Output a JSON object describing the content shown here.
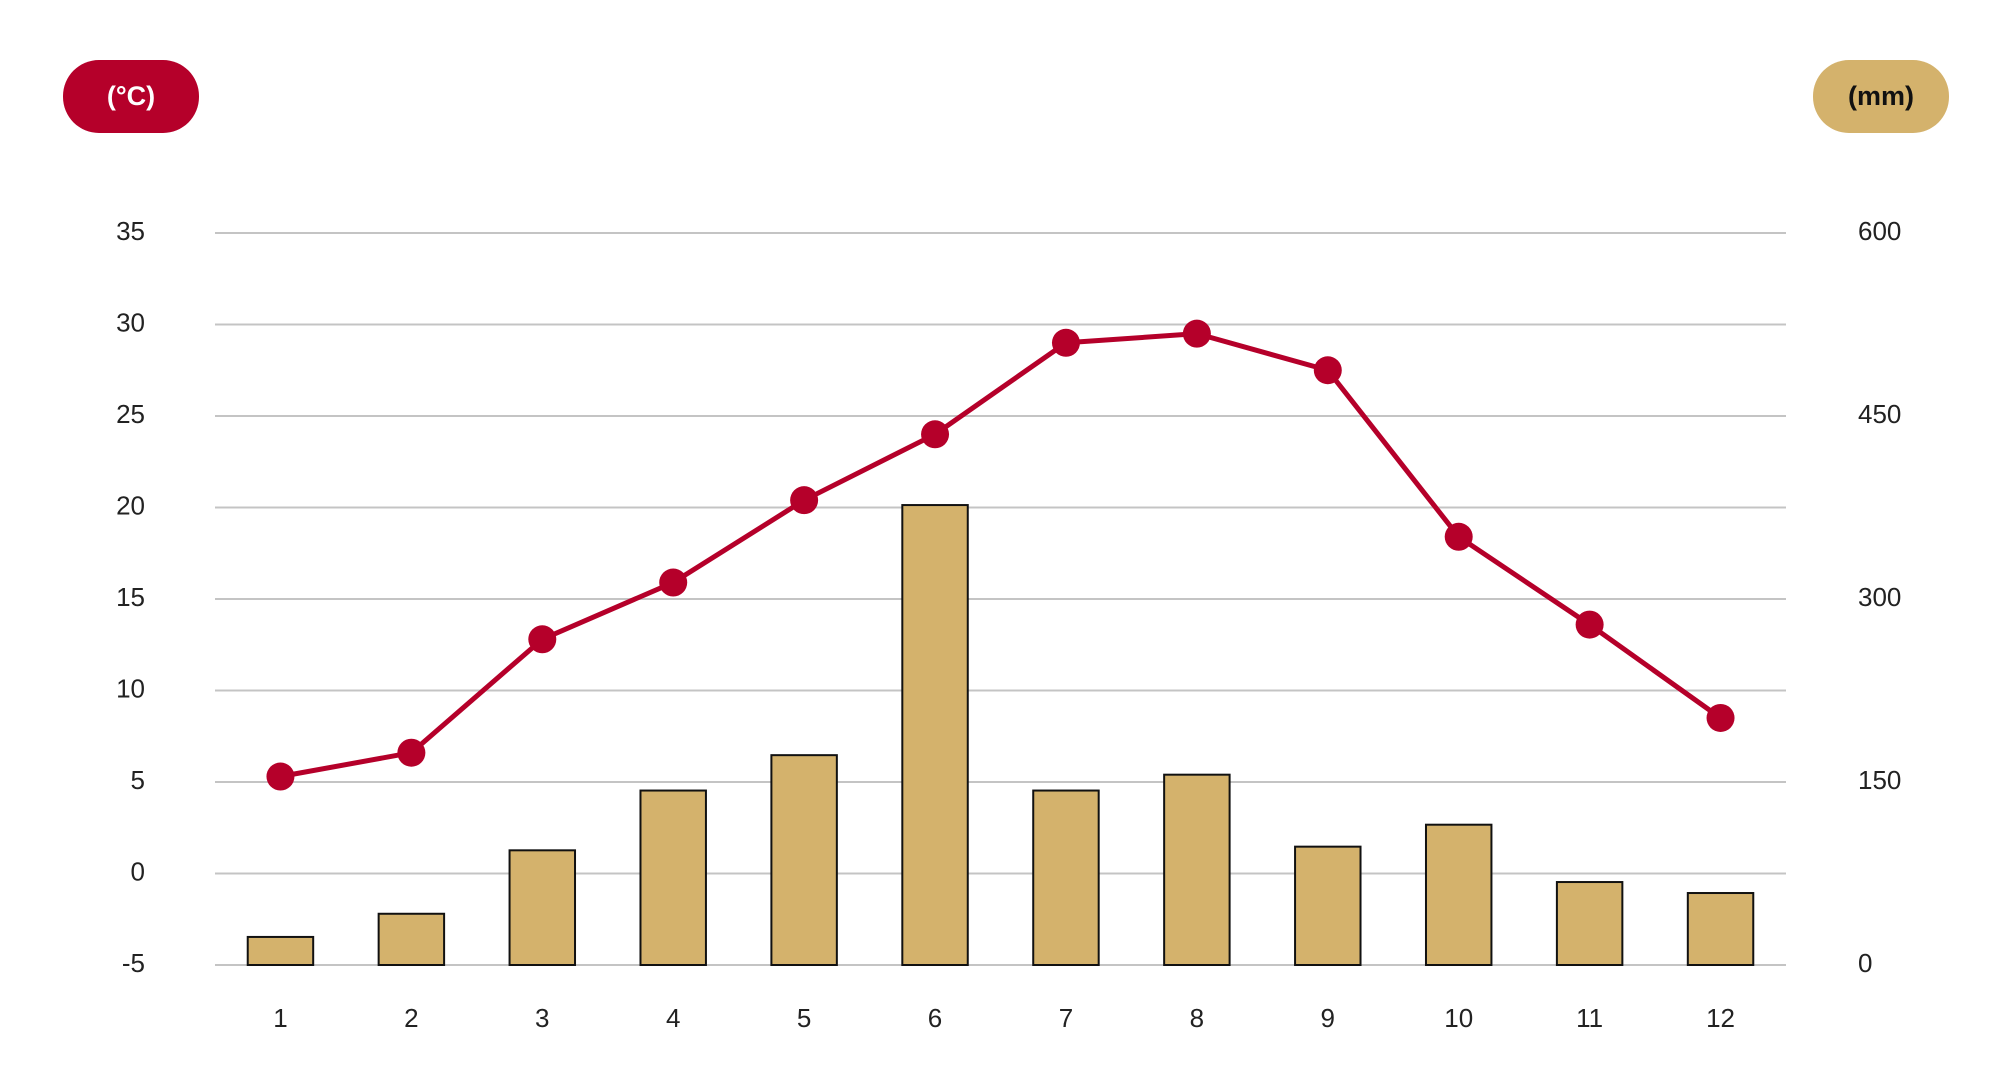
{
  "chart_data": {
    "type": "combo",
    "y_label": "(°C)",
    "y2_label": "(mm)",
    "categories": [
      "1",
      "2",
      "3",
      "4",
      "5",
      "6",
      "7",
      "8",
      "9",
      "10",
      "11",
      "12"
    ],
    "series": [
      {
        "type": "bar",
        "axis": "y2",
        "color": "#d4b26c",
        "values": [
          23,
          42,
          94,
          143,
          172,
          377,
          143,
          156,
          97,
          115,
          68,
          59
        ]
      },
      {
        "type": "line",
        "axis": "y",
        "color": "#b5002a",
        "values": [
          5.3,
          6.6,
          12.8,
          15.9,
          20.4,
          24.0,
          29.0,
          29.5,
          27.5,
          18.4,
          13.6,
          8.5
        ]
      }
    ],
    "ylim": [
      -5,
      35
    ],
    "yticks": [
      -5,
      0,
      5,
      10,
      15,
      20,
      25,
      30,
      35
    ],
    "y2lim": [
      0,
      600
    ],
    "y2ticks": [
      0,
      150,
      300,
      450,
      600
    ],
    "grid": true
  }
}
